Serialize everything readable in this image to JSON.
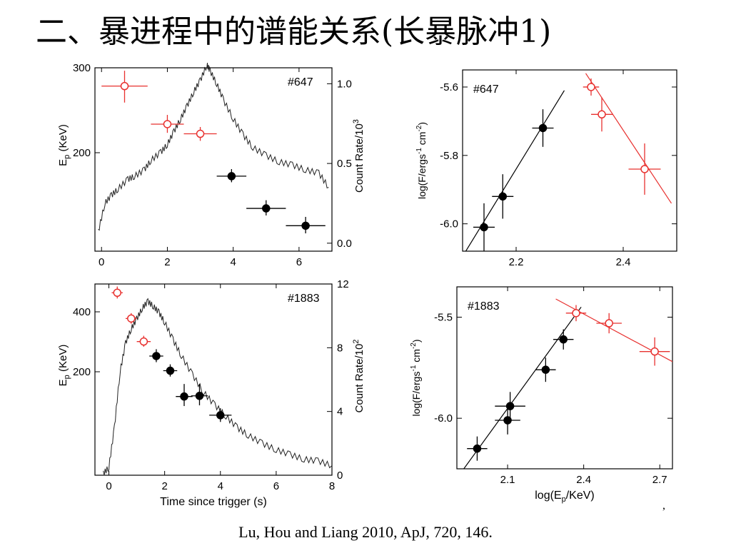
{
  "slide": {
    "title": "二、暴进程中的谱能关系(长暴脉冲1)",
    "citation": "Lu, Hou and Liang 2010, ApJ, 720, 146.",
    "stray_mark": ","
  },
  "colors": {
    "black_points": "#000000",
    "red_points": "#e8312f",
    "curve": "#222222",
    "axes": "#000000"
  },
  "chart_data": [
    {
      "id": "p647_time",
      "type": "scatter",
      "tag": "#647",
      "xlabel": "",
      "ylabel_left": "E_p (KeV)",
      "ylabel_right": "Count Rate/10^3",
      "x_ticks": [
        "0",
        "2",
        "4",
        "6"
      ],
      "y_left_ticks": [
        "200",
        "300"
      ],
      "y_right_ticks": [
        "0.0",
        "0.5",
        "1.0"
      ],
      "xlim": [
        -0.2,
        7
      ],
      "ylim_left_log": [
        130,
        300
      ],
      "ylim_right": [
        -0.05,
        1.1
      ],
      "series": [
        {
          "marker": "open",
          "color": "red",
          "points": [
            {
              "x": 0.7,
              "y": 276,
              "xerr": 0.7,
              "ylo": 256,
              "yhi": 296
            },
            {
              "x": 2.0,
              "y": 232,
              "xerr": 0.5,
              "ylo": 223,
              "yhi": 242
            },
            {
              "x": 3.0,
              "y": 222,
              "xerr": 0.5,
              "ylo": 215,
              "yhi": 229
            }
          ]
        },
        {
          "marker": "filled",
          "color": "black",
          "points": [
            {
              "x": 3.95,
              "y": 183,
              "xerr": 0.45,
              "ylo": 178,
              "yhi": 189
            },
            {
              "x": 5.0,
              "y": 158,
              "xerr": 0.6,
              "ylo": 153,
              "yhi": 164
            },
            {
              "x": 6.2,
              "y": 146,
              "xerr": 0.6,
              "ylo": 141,
              "yhi": 152
            }
          ]
        }
      ],
      "curve_right": [
        [
          -0.1,
          0.07
        ],
        [
          0.1,
          0.25
        ],
        [
          0.3,
          0.3
        ],
        [
          0.5,
          0.34
        ],
        [
          0.8,
          0.4
        ],
        [
          1.0,
          0.42
        ],
        [
          1.3,
          0.46
        ],
        [
          1.5,
          0.52
        ],
        [
          1.8,
          0.57
        ],
        [
          2.0,
          0.62
        ],
        [
          2.2,
          0.7
        ],
        [
          2.4,
          0.78
        ],
        [
          2.6,
          0.86
        ],
        [
          2.8,
          0.95
        ],
        [
          3.0,
          1.02
        ],
        [
          3.2,
          1.12
        ],
        [
          3.3,
          1.08
        ],
        [
          3.5,
          1.0
        ],
        [
          3.7,
          0.9
        ],
        [
          4.0,
          0.78
        ],
        [
          4.3,
          0.68
        ],
        [
          4.6,
          0.6
        ],
        [
          5.0,
          0.55
        ],
        [
          5.4,
          0.51
        ],
        [
          5.8,
          0.49
        ],
        [
          6.2,
          0.46
        ],
        [
          6.6,
          0.44
        ],
        [
          6.9,
          0.35
        ]
      ]
    },
    {
      "id": "p647_rel",
      "type": "scatter",
      "tag": "#647",
      "xlabel": "",
      "ylabel": "log(F/ergs^-1 cm^-2)",
      "x_ticks": [
        "2.2",
        "2.4"
      ],
      "y_ticks": [
        "-6.0",
        "-5.8",
        "-5.6"
      ],
      "xlim": [
        2.1,
        2.5
      ],
      "ylim": [
        -6.08,
        -5.55
      ],
      "series": [
        {
          "marker": "filled",
          "color": "black",
          "points": [
            {
              "x": 2.14,
              "y": -6.01,
              "xerr": 0.02,
              "yerr": 0.07
            },
            {
              "x": 2.175,
              "y": -5.92,
              "xerr": 0.02,
              "yerr": 0.065
            },
            {
              "x": 2.25,
              "y": -5.72,
              "xerr": 0.02,
              "yerr": 0.055
            }
          ],
          "fit": [
            [
              2.104,
              -6.085
            ],
            [
              2.29,
              -5.61
            ]
          ]
        },
        {
          "marker": "open",
          "color": "red",
          "points": [
            {
              "x": 2.34,
              "y": -5.6,
              "xerr": 0.015,
              "yerr": 0.025
            },
            {
              "x": 2.36,
              "y": -5.68,
              "xerr": 0.02,
              "yerr": 0.05
            },
            {
              "x": 2.44,
              "y": -5.84,
              "xerr": 0.03,
              "yerr": 0.075
            }
          ],
          "fit": [
            [
              2.33,
              -5.56
            ],
            [
              2.49,
              -5.94
            ]
          ]
        }
      ]
    },
    {
      "id": "p1883_time",
      "type": "scatter",
      "tag": "#1883",
      "xlabel": "Time since trigger (s)",
      "ylabel_left": "E_p (KeV)",
      "ylabel_right": "Count Rate/10^2",
      "x_ticks": [
        "0",
        "2",
        "4",
        "6",
        "8"
      ],
      "y_left_ticks": [
        "200",
        "400"
      ],
      "y_right_ticks": [
        "0",
        "4",
        "8",
        "12"
      ],
      "xlim": [
        -0.5,
        8
      ],
      "ylim_left_log": [
        50,
        500
      ],
      "ylim_right": [
        0,
        12
      ],
      "series": [
        {
          "marker": "open",
          "color": "red",
          "points": [
            {
              "x": 0.3,
              "y": 450,
              "xerr": 0.2,
              "ylo": 420,
              "yhi": 485
            },
            {
              "x": 0.8,
              "y": 330,
              "xerr": 0.2,
              "ylo": 310,
              "yhi": 352
            },
            {
              "x": 1.25,
              "y": 250,
              "xerr": 0.25,
              "ylo": 235,
              "yhi": 268
            }
          ]
        },
        {
          "marker": "filled",
          "color": "black",
          "points": [
            {
              "x": 1.7,
              "y": 210,
              "xerr": 0.25,
              "ylo": 195,
              "yhi": 228
            },
            {
              "x": 2.2,
              "y": 176,
              "xerr": 0.25,
              "ylo": 164,
              "yhi": 190
            },
            {
              "x": 2.7,
              "y": 129,
              "xerr": 0.3,
              "ylo": 115,
              "yhi": 150
            },
            {
              "x": 3.25,
              "y": 130,
              "xerr": 0.3,
              "ylo": 116,
              "yhi": 150
            },
            {
              "x": 4.0,
              "y": 103,
              "xerr": 0.4,
              "ylo": 95,
              "yhi": 112
            }
          ]
        }
      ],
      "curve_right": [
        [
          -0.2,
          0.1
        ],
        [
          0.0,
          0.5
        ],
        [
          0.2,
          3.0
        ],
        [
          0.4,
          6.5
        ],
        [
          0.6,
          8.3
        ],
        [
          0.8,
          9.2
        ],
        [
          1.0,
          9.8
        ],
        [
          1.2,
          10.5
        ],
        [
          1.4,
          10.9
        ],
        [
          1.6,
          10.6
        ],
        [
          1.8,
          10.2
        ],
        [
          2.0,
          9.6
        ],
        [
          2.3,
          8.5
        ],
        [
          2.6,
          7.5
        ],
        [
          3.0,
          6.3
        ],
        [
          3.4,
          5.2
        ],
        [
          3.8,
          4.4
        ],
        [
          4.2,
          3.7
        ],
        [
          4.6,
          3.0
        ],
        [
          5.0,
          2.5
        ],
        [
          5.5,
          2.0
        ],
        [
          6.0,
          1.6
        ],
        [
          6.5,
          1.3
        ],
        [
          7.0,
          1.0
        ],
        [
          7.5,
          0.9
        ],
        [
          8.0,
          0.6
        ]
      ]
    },
    {
      "id": "p1883_rel",
      "type": "scatter",
      "tag": "#1883",
      "xlabel": "log(E_p/KeV)",
      "ylabel": "log(F/ergs^-1 cm^-2)",
      "x_ticks": [
        "2.1",
        "2.4",
        "2.7"
      ],
      "y_ticks": [
        "-6.0",
        "-5.5"
      ],
      "xlim": [
        1.9,
        2.75
      ],
      "ylim": [
        -6.25,
        -5.35
      ],
      "series": [
        {
          "marker": "filled",
          "color": "black",
          "points": [
            {
              "x": 1.98,
              "y": -6.15,
              "xerr": 0.04,
              "yerr": 0.06
            },
            {
              "x": 2.1,
              "y": -6.01,
              "xerr": 0.05,
              "yerr": 0.07
            },
            {
              "x": 2.11,
              "y": -5.94,
              "xerr": 0.06,
              "yerr": 0.07
            },
            {
              "x": 2.25,
              "y": -5.76,
              "xerr": 0.04,
              "yerr": 0.06
            },
            {
              "x": 2.32,
              "y": -5.61,
              "xerr": 0.04,
              "yerr": 0.05
            }
          ],
          "fit": [
            [
              1.91,
              -6.28
            ],
            [
              2.39,
              -5.45
            ]
          ]
        },
        {
          "marker": "open",
          "color": "red",
          "points": [
            {
              "x": 2.37,
              "y": -5.48,
              "xerr": 0.04,
              "yerr": 0.04
            },
            {
              "x": 2.5,
              "y": -5.53,
              "xerr": 0.05,
              "yerr": 0.05
            },
            {
              "x": 2.68,
              "y": -5.67,
              "xerr": 0.06,
              "yerr": 0.07
            }
          ],
          "fit": [
            [
              2.29,
              -5.41
            ],
            [
              2.75,
              -5.72
            ]
          ]
        }
      ]
    }
  ]
}
